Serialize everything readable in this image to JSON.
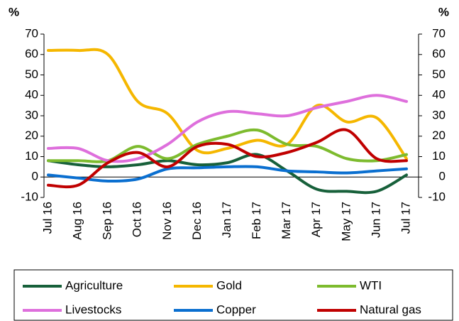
{
  "chart_data": {
    "type": "line",
    "y_label": "%",
    "y2_label": "%",
    "categories": [
      "Jul 16",
      "Aug 16",
      "Sep 16",
      "Oct 16",
      "Nov 16",
      "Dec 16",
      "Jan 17",
      "Feb 17",
      "Mar 17",
      "Apr 17",
      "May 17",
      "Jun 17",
      "Jul 17"
    ],
    "series": [
      {
        "name": "Agriculture",
        "color": "#17603a",
        "values": [
          8,
          6,
          5,
          6,
          8,
          6,
          7,
          11,
          3,
          -6,
          -7,
          -7,
          1
        ]
      },
      {
        "name": "Gold",
        "color": "#f5b700",
        "values": [
          62,
          62,
          60,
          37,
          31,
          13,
          14,
          18,
          16,
          35,
          27,
          29,
          9
        ]
      },
      {
        "name": "WTI",
        "color": "#7dbb2e",
        "values": [
          8,
          8,
          8,
          15,
          9,
          16,
          20,
          23,
          16,
          15,
          9,
          8,
          11
        ]
      },
      {
        "name": "Livestocks",
        "color": "#de6fdc",
        "values": [
          14,
          14,
          8,
          9,
          16,
          27,
          32,
          31,
          30,
          34,
          37,
          40,
          37
        ]
      },
      {
        "name": "Copper",
        "color": "#0a6fd0",
        "values": [
          1,
          -0.5,
          -2,
          -1,
          4,
          4.5,
          5,
          5,
          3,
          2.5,
          2,
          3,
          4
        ]
      },
      {
        "name": "Natural gas",
        "color": "#c00000",
        "values": [
          -4,
          -4,
          7,
          12,
          5,
          15,
          16,
          10,
          12,
          17,
          23,
          9,
          8
        ]
      }
    ],
    "ylim": [
      -10,
      70
    ],
    "yticks": [
      -10,
      0,
      10,
      20,
      30,
      40,
      50,
      60,
      70
    ],
    "y2lim": [
      -10,
      70
    ],
    "y2ticks": [
      -10,
      0,
      10,
      20,
      30,
      40,
      50,
      60,
      70
    ],
    "legend": "bottom"
  }
}
